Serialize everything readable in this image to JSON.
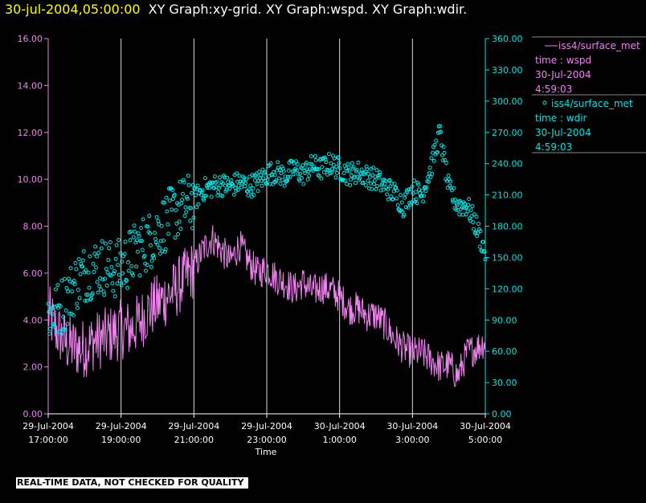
{
  "header": {
    "timestamp": "30-jul-2004,05:00:00",
    "graphs": "XY Graph:xy-grid.  XY Graph:wspd.  XY Graph:wdir."
  },
  "legend": [
    {
      "marker": "line",
      "label": "iss4/surface_met",
      "line2": "time : wspd",
      "line3": "30-Jul-2004",
      "line4": "4:59:03",
      "color": "#ee82ee"
    },
    {
      "marker": "circle",
      "label": "iss4/surface_met",
      "line2": "time : wdir",
      "line3": "30-Jul-2004",
      "line4": "4:59:03",
      "color": "#00e5e5"
    }
  ],
  "footer": {
    "disclaimer": "REAL-TIME DATA, NOT CHECKED FOR QUALITY"
  },
  "colors": {
    "wspd": "#ee82ee",
    "wdir": "#00e5e5",
    "grid": "#ffffff",
    "background": "#000000",
    "title_time": "#ffff00"
  },
  "chart_data": {
    "type": "line",
    "xlabel": "Time",
    "x_range_hours": [
      17,
      29
    ],
    "x_ticks": [
      {
        "value": 17,
        "line1": "29-Jul-2004",
        "line2": "17:00:00"
      },
      {
        "value": 19,
        "line1": "29-Jul-2004",
        "line2": "19:00:00"
      },
      {
        "value": 21,
        "line1": "29-Jul-2004",
        "line2": "21:00:00"
      },
      {
        "value": 23,
        "line1": "29-Jul-2004",
        "line2": "23:00:00"
      },
      {
        "value": 25,
        "line1": "30-Jul-2004",
        "line2": "1:00:00"
      },
      {
        "value": 27,
        "line1": "30-Jul-2004",
        "line2": "3:00:00"
      },
      {
        "value": 29,
        "line1": "30-Jul-2004",
        "line2": "5:00:00"
      }
    ],
    "y_left": {
      "ylim": [
        0,
        16
      ],
      "ticks": [
        "0.00",
        "2.00",
        "4.00",
        "6.00",
        "8.00",
        "10.00",
        "12.00",
        "14.00",
        "16.00"
      ]
    },
    "y_right": {
      "ylim": [
        0,
        360
      ],
      "ticks": [
        "0.00",
        "30.00",
        "60.00",
        "90.00",
        "120.00",
        "150.00",
        "180.00",
        "210.00",
        "240.00",
        "270.00",
        "300.00",
        "330.00",
        "360.00"
      ]
    },
    "grid": "vertical",
    "series": [
      {
        "name": "wspd",
        "axis": "left",
        "style": "line",
        "x": [
          17.0,
          17.25,
          17.5,
          17.75,
          18.0,
          18.25,
          18.5,
          18.75,
          19.0,
          19.25,
          19.5,
          19.75,
          20.0,
          20.25,
          20.5,
          20.75,
          21.0,
          21.25,
          21.5,
          21.75,
          22.0,
          22.25,
          22.5,
          22.75,
          23.0,
          23.25,
          23.5,
          23.75,
          24.0,
          24.25,
          24.5,
          24.75,
          25.0,
          25.25,
          25.5,
          25.75,
          26.0,
          26.25,
          26.5,
          26.75,
          27.0,
          27.25,
          27.5,
          27.75,
          28.0,
          28.25,
          28.5,
          28.75,
          29.0
        ],
        "y": [
          4.3,
          3.5,
          3.0,
          2.8,
          2.8,
          3.1,
          3.2,
          3.4,
          3.6,
          3.6,
          3.9,
          4.4,
          4.7,
          5.0,
          5.3,
          5.8,
          6.2,
          7.0,
          7.5,
          7.0,
          6.5,
          7.2,
          6.5,
          6.0,
          6.2,
          5.8,
          5.6,
          5.3,
          5.6,
          5.2,
          5.4,
          5.3,
          5.0,
          4.5,
          4.5,
          4.2,
          4.2,
          3.8,
          3.2,
          2.8,
          2.6,
          2.6,
          2.3,
          2.0,
          2.1,
          1.6,
          2.6,
          2.8,
          3.1
        ],
        "noise": 1.3
      },
      {
        "name": "wdir",
        "axis": "right",
        "style": "points",
        "x": [
          17.0,
          17.25,
          17.5,
          17.75,
          18.0,
          18.25,
          18.5,
          18.75,
          19.0,
          19.25,
          19.5,
          19.75,
          20.0,
          20.25,
          20.5,
          20.75,
          21.0,
          21.25,
          21.5,
          21.75,
          22.0,
          22.25,
          22.5,
          22.75,
          23.0,
          23.25,
          23.5,
          23.75,
          24.0,
          24.25,
          24.5,
          24.75,
          25.0,
          25.25,
          25.5,
          25.75,
          26.0,
          26.25,
          26.5,
          26.75,
          27.0,
          27.25,
          27.5,
          27.75,
          28.0,
          28.25,
          28.5,
          28.75,
          29.0
        ],
        "y": [
          95,
          98,
          110,
          125,
          135,
          140,
          142,
          138,
          140,
          150,
          160,
          165,
          175,
          185,
          195,
          200,
          205,
          215,
          218,
          220,
          218,
          222,
          218,
          222,
          230,
          232,
          228,
          235,
          230,
          238,
          235,
          240,
          235,
          230,
          232,
          228,
          225,
          218,
          212,
          200,
          215,
          210,
          235,
          270,
          215,
          200,
          200,
          180,
          155
        ],
        "noise": 22
      }
    ]
  }
}
